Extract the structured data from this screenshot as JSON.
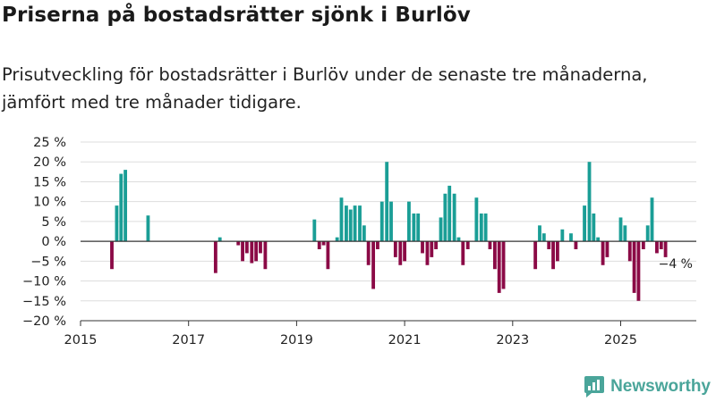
{
  "title": "Priserna på bostadsrätter sjönk i Burlöv",
  "subtitle": "Prisutveckling för bostadsrätter i Burlöv under de senaste tre månaderna, jämfört med tre månader tidigare.",
  "brand": "Newsworthy",
  "colors": {
    "positive": "#1a9e96",
    "negative": "#8b0a46",
    "grid": "#dddddd",
    "axis": "#333333",
    "brand": "#4aa59a"
  },
  "chart_data": {
    "type": "bar",
    "xlabel": "",
    "ylabel": "",
    "ylim": [
      -20,
      25
    ],
    "xlim": [
      2015.0,
      2026.4
    ],
    "yticks": [
      25,
      20,
      15,
      10,
      5,
      0,
      -5,
      -10,
      -15,
      -20
    ],
    "ytick_labels": [
      "25 %",
      "20 %",
      "15 %",
      "10 %",
      "5 %",
      "0 %",
      "−5 %",
      "−10 %",
      "−15 %",
      "−20 %"
    ],
    "xticks": [
      2015,
      2017,
      2019,
      2021,
      2023,
      2025
    ],
    "xtick_labels": [
      "2015",
      "2017",
      "2019",
      "2021",
      "2023",
      "2025"
    ],
    "annotation": {
      "label": "−4 %",
      "x": 2025.83,
      "y": -4
    },
    "points": [
      {
        "x": 2015.58,
        "v": -7
      },
      {
        "x": 2015.67,
        "v": 9
      },
      {
        "x": 2015.75,
        "v": 17
      },
      {
        "x": 2015.83,
        "v": 18
      },
      {
        "x": 2016.25,
        "v": 6.5
      },
      {
        "x": 2017.5,
        "v": -8
      },
      {
        "x": 2017.58,
        "v": 1
      },
      {
        "x": 2017.92,
        "v": -1
      },
      {
        "x": 2018.0,
        "v": -5
      },
      {
        "x": 2018.08,
        "v": -3
      },
      {
        "x": 2018.17,
        "v": -5.5
      },
      {
        "x": 2018.25,
        "v": -5
      },
      {
        "x": 2018.33,
        "v": -3
      },
      {
        "x": 2018.42,
        "v": -7
      },
      {
        "x": 2019.33,
        "v": 5.5
      },
      {
        "x": 2019.42,
        "v": -2
      },
      {
        "x": 2019.5,
        "v": -1
      },
      {
        "x": 2019.58,
        "v": -7
      },
      {
        "x": 2019.75,
        "v": 1
      },
      {
        "x": 2019.83,
        "v": 11
      },
      {
        "x": 2019.92,
        "v": 9
      },
      {
        "x": 2020.0,
        "v": 8
      },
      {
        "x": 2020.08,
        "v": 9
      },
      {
        "x": 2020.17,
        "v": 9
      },
      {
        "x": 2020.25,
        "v": 4
      },
      {
        "x": 2020.33,
        "v": -6
      },
      {
        "x": 2020.42,
        "v": -12
      },
      {
        "x": 2020.5,
        "v": -2
      },
      {
        "x": 2020.58,
        "v": 10
      },
      {
        "x": 2020.67,
        "v": 20
      },
      {
        "x": 2020.75,
        "v": 10
      },
      {
        "x": 2020.83,
        "v": -4
      },
      {
        "x": 2020.92,
        "v": -6
      },
      {
        "x": 2021.0,
        "v": -5
      },
      {
        "x": 2021.08,
        "v": 10
      },
      {
        "x": 2021.17,
        "v": 7
      },
      {
        "x": 2021.25,
        "v": 7
      },
      {
        "x": 2021.33,
        "v": -3
      },
      {
        "x": 2021.42,
        "v": -6
      },
      {
        "x": 2021.5,
        "v": -4
      },
      {
        "x": 2021.58,
        "v": -2
      },
      {
        "x": 2021.67,
        "v": 6
      },
      {
        "x": 2021.75,
        "v": 12
      },
      {
        "x": 2021.83,
        "v": 14
      },
      {
        "x": 2021.92,
        "v": 12
      },
      {
        "x": 2022.0,
        "v": 1
      },
      {
        "x": 2022.08,
        "v": -6
      },
      {
        "x": 2022.17,
        "v": -2
      },
      {
        "x": 2022.33,
        "v": 11
      },
      {
        "x": 2022.42,
        "v": 7
      },
      {
        "x": 2022.5,
        "v": 7
      },
      {
        "x": 2022.58,
        "v": -2
      },
      {
        "x": 2022.67,
        "v": -7
      },
      {
        "x": 2022.75,
        "v": -13
      },
      {
        "x": 2022.83,
        "v": -12
      },
      {
        "x": 2023.42,
        "v": -7
      },
      {
        "x": 2023.5,
        "v": 4
      },
      {
        "x": 2023.58,
        "v": 2
      },
      {
        "x": 2023.67,
        "v": -2
      },
      {
        "x": 2023.75,
        "v": -7
      },
      {
        "x": 2023.83,
        "v": -5
      },
      {
        "x": 2023.92,
        "v": 3
      },
      {
        "x": 2024.08,
        "v": 2
      },
      {
        "x": 2024.17,
        "v": -2
      },
      {
        "x": 2024.33,
        "v": 9
      },
      {
        "x": 2024.42,
        "v": 20
      },
      {
        "x": 2024.5,
        "v": 7
      },
      {
        "x": 2024.58,
        "v": 1
      },
      {
        "x": 2024.67,
        "v": -6
      },
      {
        "x": 2024.75,
        "v": -4
      },
      {
        "x": 2025.0,
        "v": 6
      },
      {
        "x": 2025.08,
        "v": 4
      },
      {
        "x": 2025.17,
        "v": -5
      },
      {
        "x": 2025.25,
        "v": -13
      },
      {
        "x": 2025.33,
        "v": -15
      },
      {
        "x": 2025.42,
        "v": -2
      },
      {
        "x": 2025.5,
        "v": 4
      },
      {
        "x": 2025.58,
        "v": 11
      },
      {
        "x": 2025.67,
        "v": -3
      },
      {
        "x": 2025.75,
        "v": -2
      },
      {
        "x": 2025.83,
        "v": -4
      }
    ]
  }
}
